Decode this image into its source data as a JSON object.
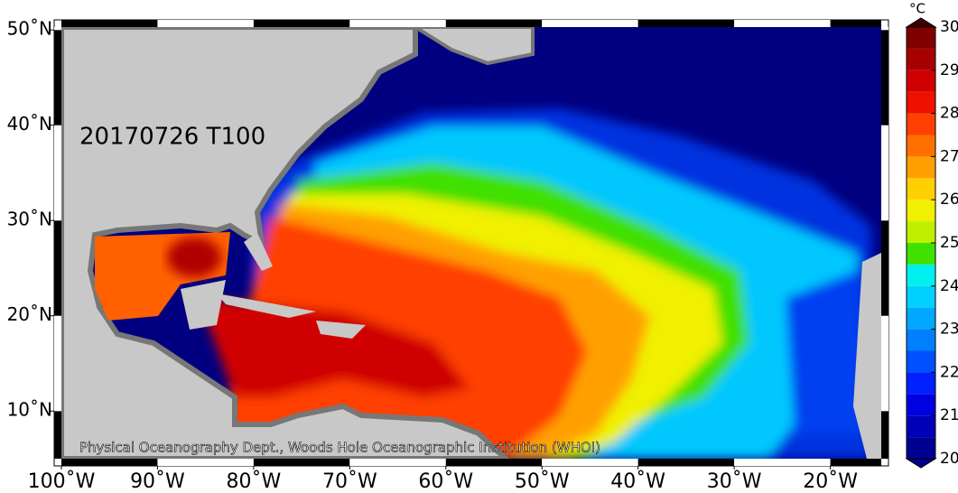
{
  "map": {
    "label": "20170726 T100",
    "credit": "Physical Oceanography Dept., Woods Hole Oceanographic Institution (WHOI)",
    "xlim": [
      -100,
      -14.7
    ],
    "ylim": [
      5,
      50.3
    ],
    "xticks": [
      {
        "value": -100,
        "label": "100˚W"
      },
      {
        "value": -90,
        "label": "90˚W"
      },
      {
        "value": -80,
        "label": "80˚W"
      },
      {
        "value": -70,
        "label": "70˚W"
      },
      {
        "value": -60,
        "label": "60˚W"
      },
      {
        "value": -50,
        "label": "50˚W"
      },
      {
        "value": -40,
        "label": "40˚W"
      },
      {
        "value": -30,
        "label": "30˚W"
      },
      {
        "value": -20,
        "label": "20˚W"
      }
    ],
    "yticks": [
      {
        "value": 10,
        "label": "10˚N"
      },
      {
        "value": 20,
        "label": "20˚N"
      },
      {
        "value": 30,
        "label": "30˚N"
      },
      {
        "value": 40,
        "label": "40˚N"
      },
      {
        "value": 50,
        "label": "50˚N"
      }
    ],
    "colorbar": {
      "unit": "°C",
      "lim": [
        20,
        30
      ],
      "ticks": [
        20,
        21,
        22,
        23,
        24,
        25,
        26,
        27,
        28,
        29,
        30
      ],
      "colors": [
        "#000090",
        "#0000b8",
        "#0000e0",
        "#0020ff",
        "#0050ff",
        "#0080ff",
        "#00a8ff",
        "#00d0ff",
        "#00f0f0",
        "#40e000",
        "#c0f000",
        "#f0f000",
        "#ffd000",
        "#ffa000",
        "#ff7000",
        "#ff4000",
        "#f01000",
        "#d00000",
        "#a80000",
        "#800000",
        "#400000"
      ]
    }
  }
}
